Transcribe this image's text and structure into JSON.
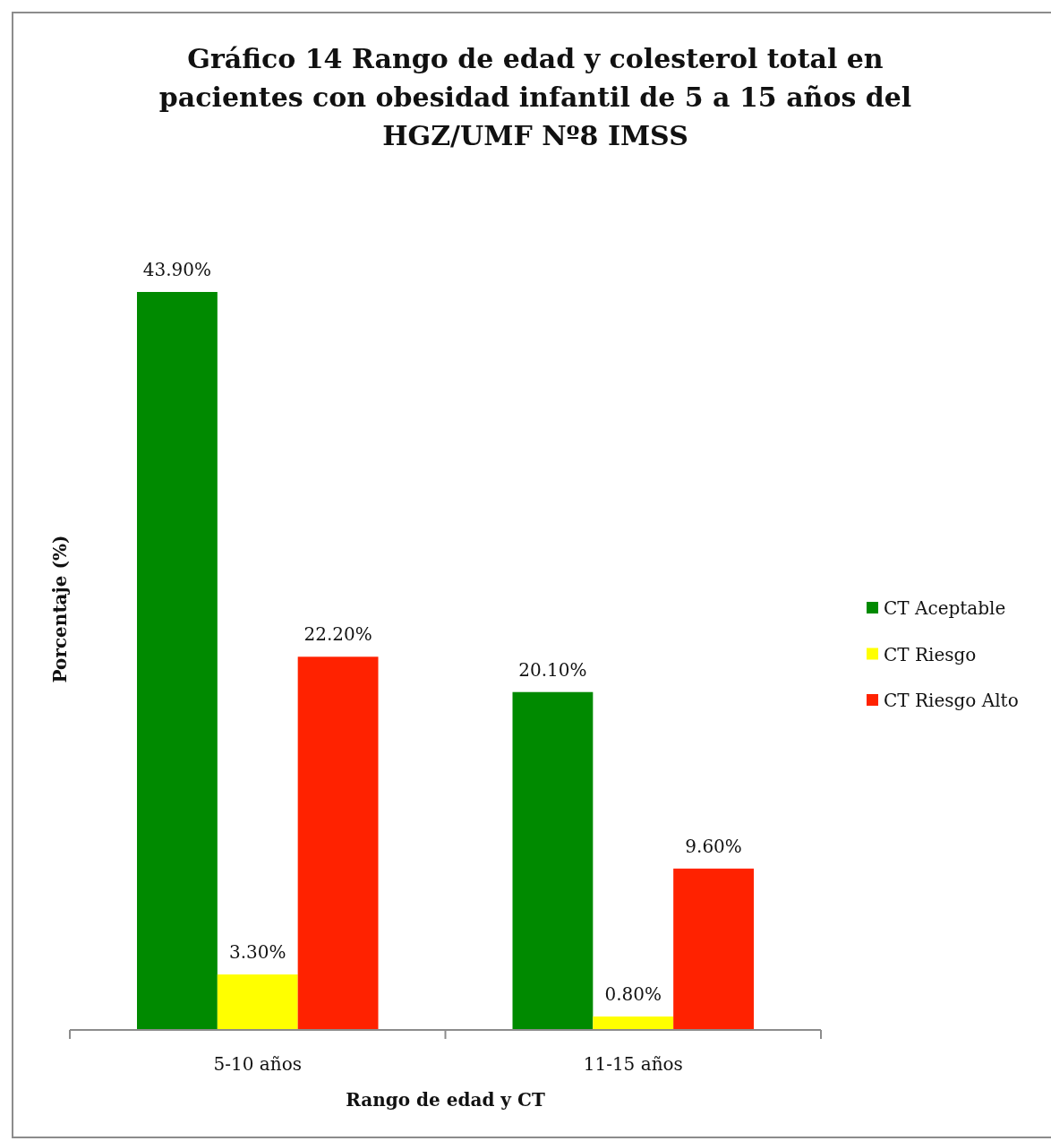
{
  "chart_data": {
    "type": "bar",
    "title": "Gráfico 14 Rango de edad y colesterol total en pacientes con obesidad infantil de 5 a 15 años del HGZ/UMF Nº8 IMSS",
    "xlabel": "Rango de edad y CT",
    "ylabel": "Porcentaje (%)",
    "categories": [
      "5-10 años",
      "11-15 años"
    ],
    "series": [
      {
        "name": "CT Aceptable",
        "color": "#008a00",
        "values": [
          43.9,
          20.1
        ],
        "value_labels": [
          "43.90%",
          "20.10%"
        ]
      },
      {
        "name": "CT Riesgo",
        "color": "#ffff00",
        "values": [
          3.3,
          0.8
        ],
        "value_labels": [
          "3.30%",
          "0.80%"
        ]
      },
      {
        "name": "CT Riesgo Alto",
        "color": "#ff2200",
        "values": [
          22.2,
          9.6
        ],
        "value_labels": [
          "22.20%",
          "9.60%"
        ]
      }
    ],
    "legend": "right",
    "tick_labels": "x"
  }
}
